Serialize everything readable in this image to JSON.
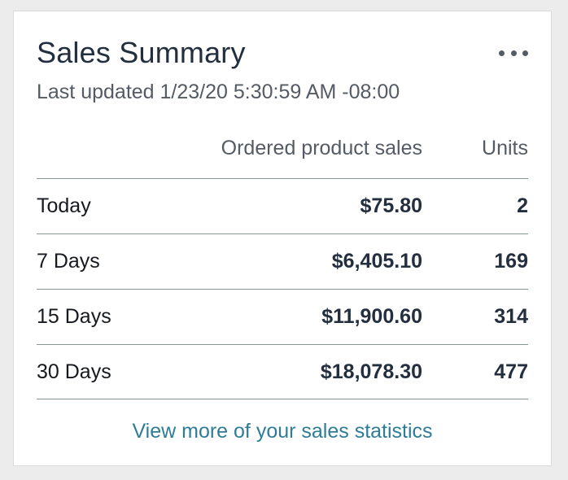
{
  "card": {
    "title": "Sales Summary",
    "subtitle": "Last updated 1/23/20 5:30:59 AM -08:00",
    "menu_icon": "more-options-icon"
  },
  "table": {
    "headers": [
      "",
      "Ordered product sales",
      "Units"
    ],
    "rows": [
      {
        "period": "Today",
        "sales": "$75.80",
        "units": "2"
      },
      {
        "period": "7 Days",
        "sales": "$6,405.10",
        "units": "169"
      },
      {
        "period": "15 Days",
        "sales": "$11,900.60",
        "units": "314"
      },
      {
        "period": "30 Days",
        "sales": "$18,078.30",
        "units": "477"
      }
    ]
  },
  "footer": {
    "link_text": "View more of your sales statistics"
  },
  "colors": {
    "link": "#2e7c96",
    "text": "#232f3e",
    "muted": "#545b64",
    "divider": "#879596"
  }
}
